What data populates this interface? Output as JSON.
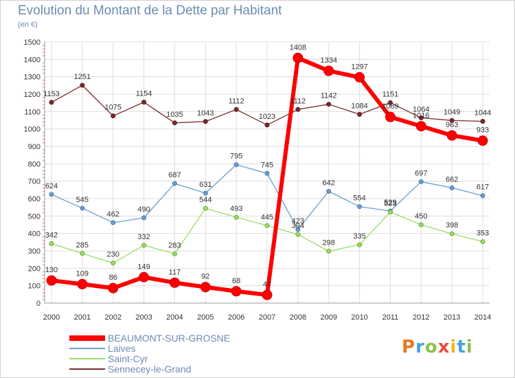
{
  "header": {
    "title": "Evolution du Montant de la Dette par Habitant",
    "subtitle": "(en €)"
  },
  "logo": {
    "text": "Proxiti",
    "colors": [
      "#e87b1e",
      "#4aa3d8",
      "#8bc34a",
      "#e84c3d",
      "#f2b61b",
      "#4aa3d8",
      "#8bc34a"
    ]
  },
  "chart_data": {
    "type": "line",
    "x": [
      "2000",
      "2001",
      "2002",
      "2003",
      "2004",
      "2005",
      "2006",
      "2007",
      "2008",
      "2009",
      "2010",
      "2011",
      "2012",
      "2013",
      "2014"
    ],
    "ylim": [
      0,
      1500
    ],
    "yticks": [
      0,
      100,
      200,
      300,
      400,
      500,
      600,
      700,
      800,
      900,
      1000,
      1100,
      1200,
      1300,
      1400,
      1500
    ],
    "grid": true,
    "legend_position": "bottom-left",
    "series": [
      {
        "name": "BEAUMONT-SUR-GROSNE",
        "color": "#ff0000",
        "values": [
          130,
          109,
          86,
          149,
          117,
          92,
          68,
          47,
          1408,
          1334,
          1297,
          1069,
          1016,
          963,
          933
        ]
      },
      {
        "name": "Laives",
        "color": "#6a9dcf",
        "values": [
          624,
          545,
          462,
          490,
          687,
          631,
          795,
          745,
          423,
          642,
          554,
          529,
          697,
          662,
          617
        ]
      },
      {
        "name": "Saint-Cyr",
        "color": "#99dd66",
        "values": [
          342,
          285,
          230,
          332,
          283,
          544,
          493,
          445,
          394,
          298,
          335,
          523,
          450,
          398,
          353
        ]
      },
      {
        "name": "Sennecey-le-Grand",
        "color": "#7a2a2a",
        "values": [
          1153,
          1251,
          1075,
          1154,
          1035,
          1043,
          1112,
          1023,
          1112,
          1142,
          1084,
          1151,
          1064,
          1049,
          1044
        ]
      }
    ]
  }
}
